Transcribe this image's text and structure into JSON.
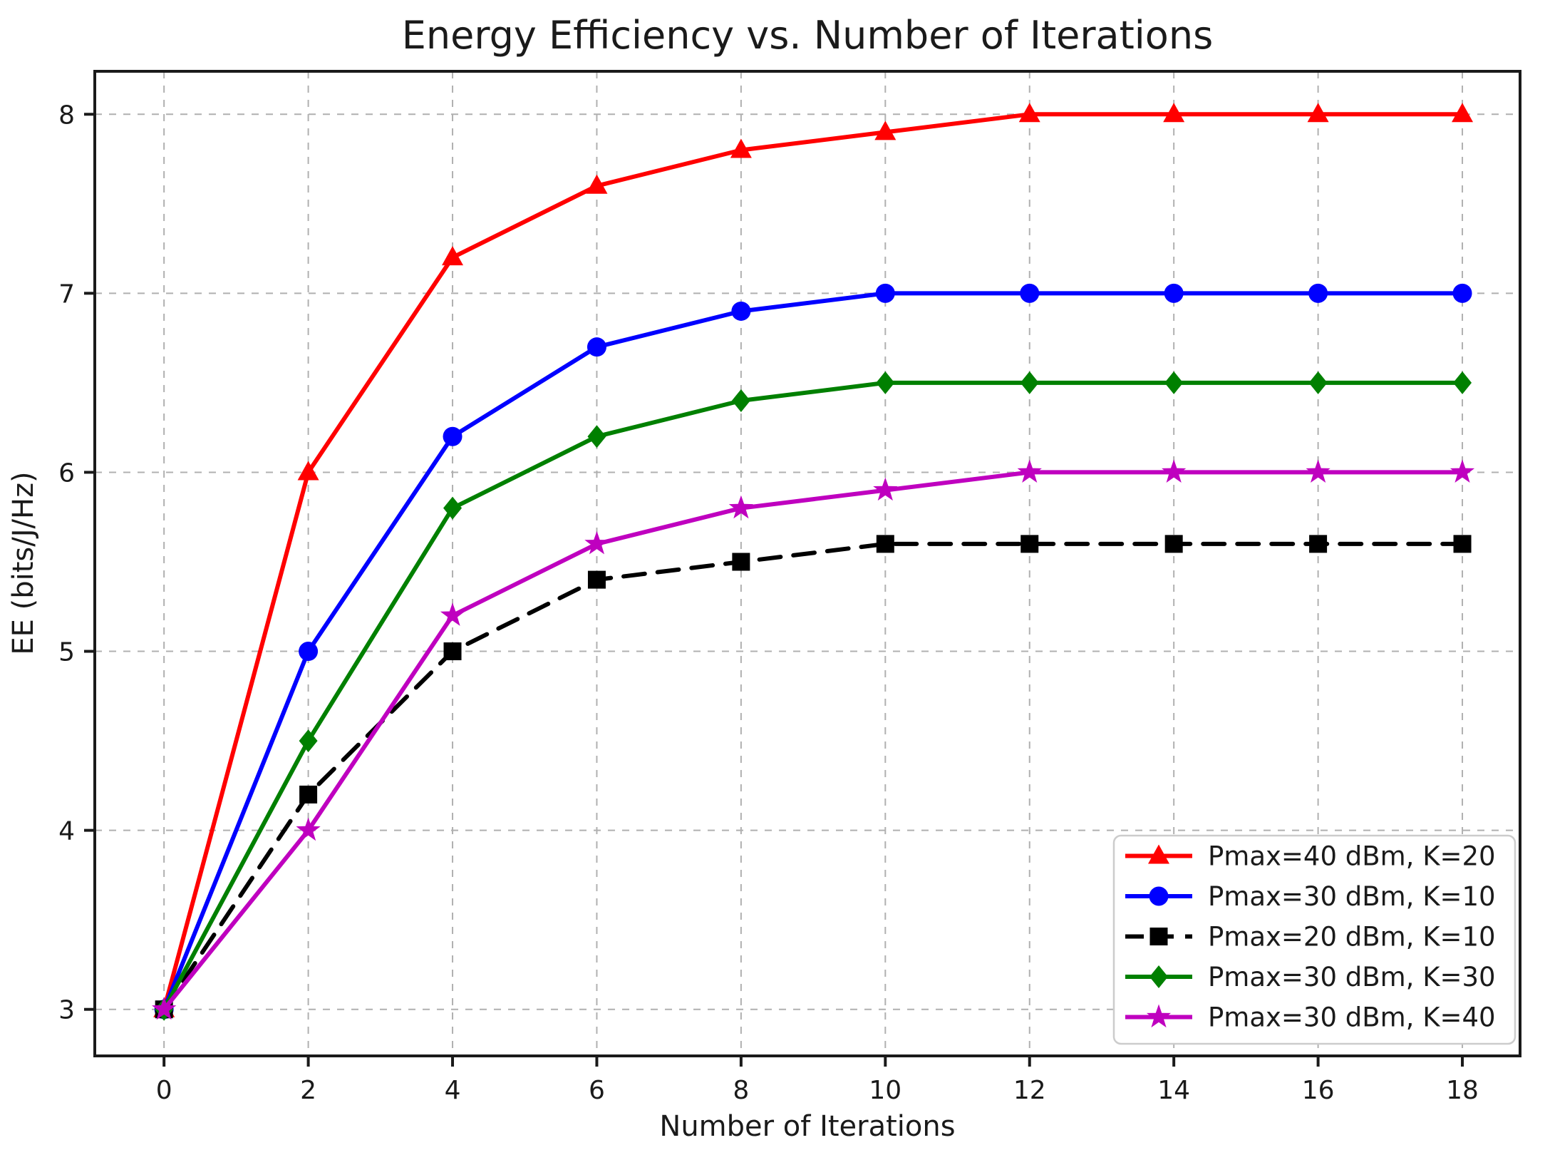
{
  "chart_data": {
    "type": "line",
    "title": "Energy Efficiency vs. Number of Iterations",
    "xlabel": "Number of Iterations",
    "ylabel": "EE (bits/J/Hz)",
    "x": [
      0,
      2,
      4,
      6,
      8,
      10,
      12,
      14,
      16,
      18
    ],
    "series": [
      {
        "name": "Pmax=40 dBm, K=20",
        "color": "#ff0000",
        "marker": "triangle",
        "linestyle": "solid",
        "values": [
          3.0,
          6.0,
          7.2,
          7.6,
          7.8,
          7.9,
          8.0,
          8.0,
          8.0,
          8.0
        ]
      },
      {
        "name": "Pmax=30 dBm, K=10",
        "color": "#0000ff",
        "marker": "circle",
        "linestyle": "solid",
        "values": [
          3.0,
          5.0,
          6.2,
          6.7,
          6.9,
          7.0,
          7.0,
          7.0,
          7.0,
          7.0
        ]
      },
      {
        "name": "Pmax=20 dBm, K=10",
        "color": "#000000",
        "marker": "square",
        "linestyle": "dashed",
        "values": [
          3.0,
          4.2,
          5.0,
          5.4,
          5.5,
          5.6,
          5.6,
          5.6,
          5.6,
          5.6
        ]
      },
      {
        "name": "Pmax=30 dBm, K=30",
        "color": "#008000",
        "marker": "diamond",
        "linestyle": "solid",
        "values": [
          3.0,
          4.5,
          5.8,
          6.2,
          6.4,
          6.5,
          6.5,
          6.5,
          6.5,
          6.5
        ]
      },
      {
        "name": "Pmax=30 dBm, K=40",
        "color": "#bf00bf",
        "marker": "star",
        "linestyle": "solid",
        "values": [
          3.0,
          4.0,
          5.2,
          5.6,
          5.8,
          5.9,
          6.0,
          6.0,
          6.0,
          6.0
        ]
      }
    ],
    "xticks": [
      0,
      2,
      4,
      6,
      8,
      10,
      12,
      14,
      16,
      18
    ],
    "yticks": [
      3,
      4,
      5,
      6,
      7,
      8
    ],
    "xlim": [
      -0.96,
      18.8
    ],
    "ylim": [
      2.74,
      8.24
    ],
    "grid": true,
    "grid_style": "dashed",
    "legend_position": "lower right",
    "colors": {
      "grid": "#b0b0b0",
      "spine": "#1a1a1a",
      "background": "#ffffff",
      "legend_border": "#cccccc"
    }
  }
}
